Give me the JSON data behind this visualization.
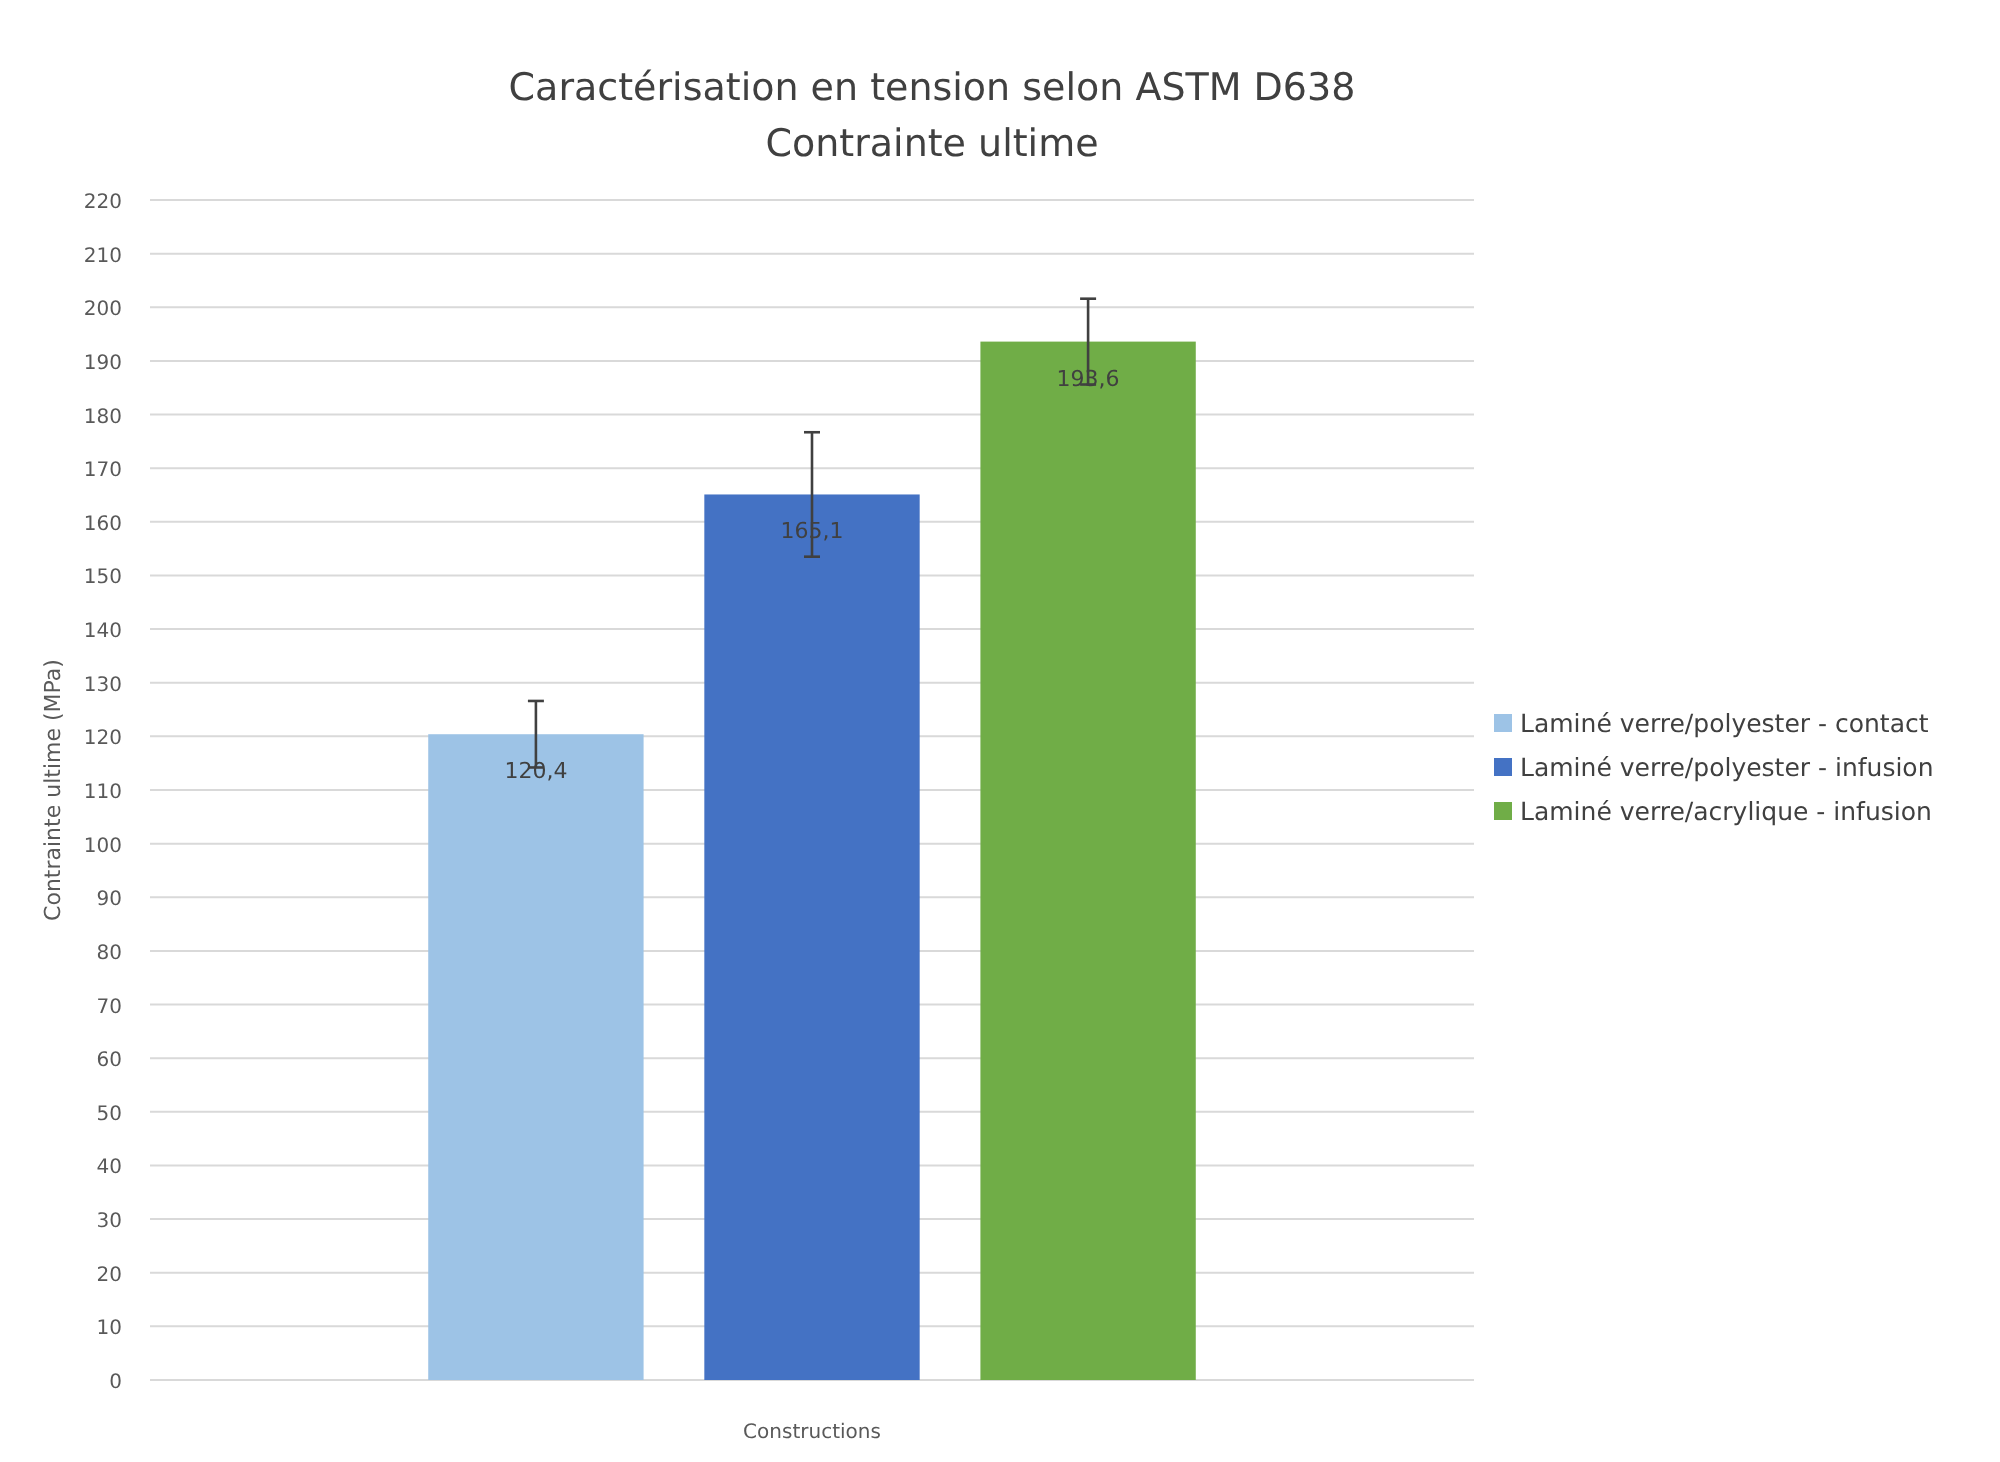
{
  "chart_data": {
    "type": "bar",
    "title": "Caractérisation en tension selon ASTM D638",
    "subtitle": "Contrainte ultime",
    "xlabel": "Constructions",
    "ylabel": "Contrainte ultime (MPa)",
    "categories": [
      null
    ],
    "series": [
      {
        "name": "Laminé verre/polyester - contact",
        "color": "#9dc3e6",
        "values": [
          120.4
        ],
        "errors": [
          6.2
        ],
        "value_labels": [
          "120,4"
        ]
      },
      {
        "name": "Laminé verre/polyester - infusion",
        "color": "#4472c4",
        "values": [
          165.1
        ],
        "errors": [
          11.6
        ],
        "value_labels": [
          "165,1"
        ]
      },
      {
        "name": "Laminé verre/acrylique - infusion",
        "color": "#70ad47",
        "values": [
          193.6
        ],
        "errors": [
          8
        ],
        "value_labels": [
          "193,6"
        ]
      }
    ],
    "ylim": [
      0,
      220
    ],
    "yticks": [
      0,
      10,
      20,
      30,
      40,
      50,
      60,
      70,
      80,
      90,
      100,
      110,
      120,
      130,
      140,
      150,
      160,
      170,
      180,
      190,
      200,
      210,
      220
    ],
    "grid": "y",
    "legend": "right"
  }
}
